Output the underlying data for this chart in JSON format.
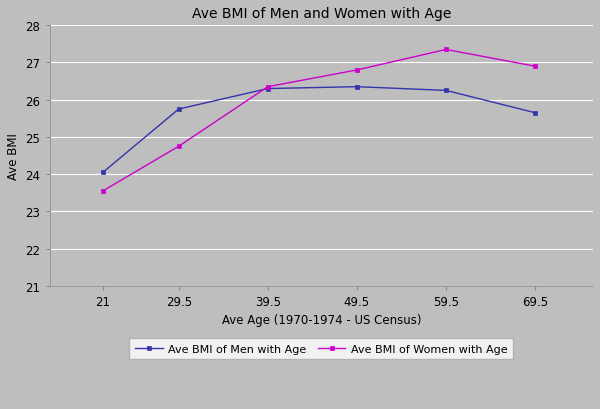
{
  "title": "Ave BMI of Men and Women with Age",
  "xlabel": "Ave Age (1970-1974 - US Census)",
  "ylabel": "Ave BMI",
  "x_values": [
    21,
    29.5,
    39.5,
    49.5,
    59.5,
    69.5
  ],
  "men_bmi": [
    24.05,
    25.75,
    26.3,
    26.35,
    26.25,
    25.65
  ],
  "women_bmi": [
    23.55,
    24.75,
    26.35,
    26.8,
    27.35,
    26.9
  ],
  "men_color": "#3333AA",
  "women_color": "#CC00CC",
  "men_label": "Ave BMI of Men with Age",
  "women_label": "Ave BMI of Women with Age",
  "ylim": [
    21,
    28
  ],
  "yticks": [
    21,
    22,
    23,
    24,
    25,
    26,
    27,
    28
  ],
  "xlim": [
    15,
    76
  ],
  "background_color": "#BEBEBE",
  "plot_bg_color": "#BEBEBE",
  "grid_color": "#FFFFFF",
  "title_fontsize": 10,
  "axis_label_fontsize": 8.5,
  "tick_fontsize": 8.5,
  "legend_fontsize": 8
}
